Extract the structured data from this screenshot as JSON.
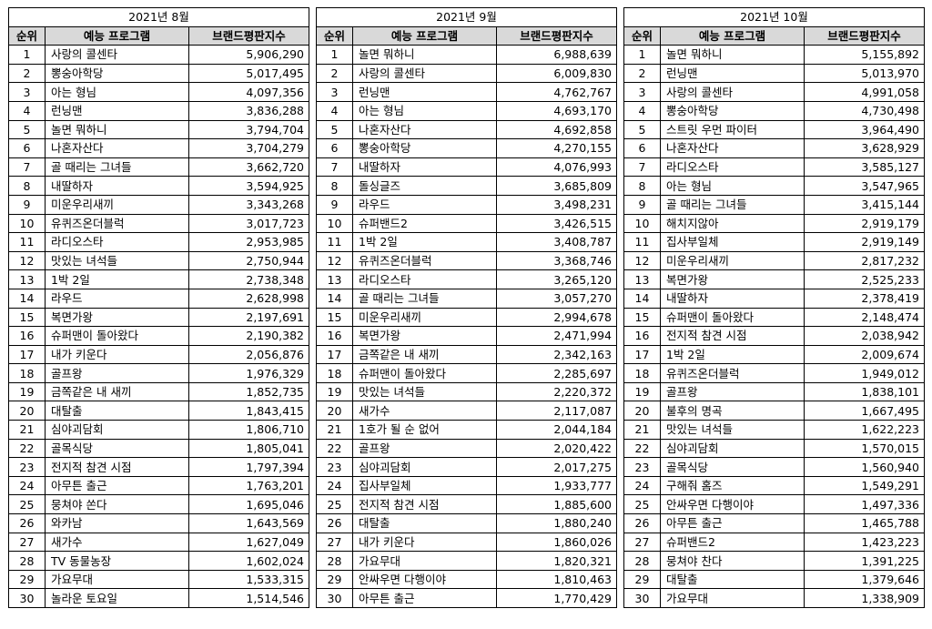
{
  "tables": [
    {
      "month": "2021년 8월",
      "headers": {
        "rank": "순위",
        "program": "예능 프로그램",
        "index": "브랜드평판지수"
      },
      "rows": [
        {
          "rank": "1",
          "name": "사랑의 콜센타",
          "score": "5,906,290"
        },
        {
          "rank": "2",
          "name": "뽕숭아학당",
          "score": "5,017,495"
        },
        {
          "rank": "3",
          "name": "아는 형님",
          "score": "4,097,356"
        },
        {
          "rank": "4",
          "name": "런닝맨",
          "score": "3,836,288"
        },
        {
          "rank": "5",
          "name": "놀면 뭐하니",
          "score": "3,794,704"
        },
        {
          "rank": "6",
          "name": "나혼자산다",
          "score": "3,704,279"
        },
        {
          "rank": "7",
          "name": "골 때리는 그녀들",
          "score": "3,662,720"
        },
        {
          "rank": "8",
          "name": "내딸하자",
          "score": "3,594,925"
        },
        {
          "rank": "9",
          "name": "미운우리새끼",
          "score": "3,343,268"
        },
        {
          "rank": "10",
          "name": "유퀴즈온더블럭",
          "score": "3,017,723"
        },
        {
          "rank": "11",
          "name": "라디오스타",
          "score": "2,953,985"
        },
        {
          "rank": "12",
          "name": "맛있는 녀석들",
          "score": "2,750,944"
        },
        {
          "rank": "13",
          "name": "1박 2일",
          "score": "2,738,348"
        },
        {
          "rank": "14",
          "name": "라우드",
          "score": "2,628,998"
        },
        {
          "rank": "15",
          "name": "복면가왕",
          "score": "2,197,691"
        },
        {
          "rank": "16",
          "name": "슈퍼맨이 돌아왔다",
          "score": "2,190,382"
        },
        {
          "rank": "17",
          "name": "내가 키운다",
          "score": "2,056,876"
        },
        {
          "rank": "18",
          "name": "골프왕",
          "score": "1,976,329"
        },
        {
          "rank": "19",
          "name": "금쪽같은 내 새끼",
          "score": "1,852,735"
        },
        {
          "rank": "20",
          "name": "대탈출",
          "score": "1,843,415"
        },
        {
          "rank": "21",
          "name": "심야괴담회",
          "score": "1,806,710"
        },
        {
          "rank": "22",
          "name": "골목식당",
          "score": "1,805,041"
        },
        {
          "rank": "23",
          "name": "전지적 참견 시점",
          "score": "1,797,394"
        },
        {
          "rank": "24",
          "name": "아무튼 출근",
          "score": "1,763,201"
        },
        {
          "rank": "25",
          "name": "뭉쳐야 쏜다",
          "score": "1,695,046"
        },
        {
          "rank": "26",
          "name": "와카남",
          "score": "1,643,569"
        },
        {
          "rank": "27",
          "name": "새가수",
          "score": "1,627,049"
        },
        {
          "rank": "28",
          "name": "TV 동물농장",
          "score": "1,602,024"
        },
        {
          "rank": "29",
          "name": "가요무대",
          "score": "1,533,315"
        },
        {
          "rank": "30",
          "name": "놀라운 토요일",
          "score": "1,514,546"
        }
      ]
    },
    {
      "month": "2021년 9월",
      "headers": {
        "rank": "순위",
        "program": "예능 프로그램",
        "index": "브랜드평판지수"
      },
      "rows": [
        {
          "rank": "1",
          "name": "놀면 뭐하니",
          "score": "6,988,639"
        },
        {
          "rank": "2",
          "name": "사랑의 콜센타",
          "score": "6,009,830"
        },
        {
          "rank": "3",
          "name": "런닝맨",
          "score": "4,762,767"
        },
        {
          "rank": "4",
          "name": "아는 형님",
          "score": "4,693,170"
        },
        {
          "rank": "5",
          "name": "나혼자산다",
          "score": "4,692,858"
        },
        {
          "rank": "6",
          "name": "뽕숭아학당",
          "score": "4,270,155"
        },
        {
          "rank": "7",
          "name": "내딸하자",
          "score": "4,076,993"
        },
        {
          "rank": "8",
          "name": "돌싱글즈",
          "score": "3,685,809"
        },
        {
          "rank": "9",
          "name": "라우드",
          "score": "3,498,231"
        },
        {
          "rank": "10",
          "name": "슈퍼밴드2",
          "score": "3,426,515"
        },
        {
          "rank": "11",
          "name": "1박 2일",
          "score": "3,408,787"
        },
        {
          "rank": "12",
          "name": "유퀴즈온더블럭",
          "score": "3,368,746"
        },
        {
          "rank": "13",
          "name": "라디오스타",
          "score": "3,265,120"
        },
        {
          "rank": "14",
          "name": "골 때리는 그녀들",
          "score": "3,057,270"
        },
        {
          "rank": "15",
          "name": "미운우리새끼",
          "score": "2,994,678"
        },
        {
          "rank": "16",
          "name": "복면가왕",
          "score": "2,471,994"
        },
        {
          "rank": "17",
          "name": "금쪽같은 내 새끼",
          "score": "2,342,163"
        },
        {
          "rank": "18",
          "name": "슈퍼맨이 돌아왔다",
          "score": "2,285,697"
        },
        {
          "rank": "19",
          "name": "맛있는 녀석들",
          "score": "2,220,372"
        },
        {
          "rank": "20",
          "name": "새가수",
          "score": "2,117,087"
        },
        {
          "rank": "21",
          "name": "1호가 될 순 없어",
          "score": "2,044,184"
        },
        {
          "rank": "22",
          "name": "골프왕",
          "score": "2,020,422"
        },
        {
          "rank": "23",
          "name": "심야괴담회",
          "score": "2,017,275"
        },
        {
          "rank": "24",
          "name": "집사부일체",
          "score": "1,933,777"
        },
        {
          "rank": "25",
          "name": "전지적 참견 시점",
          "score": "1,885,600"
        },
        {
          "rank": "26",
          "name": "대탈출",
          "score": "1,880,240"
        },
        {
          "rank": "27",
          "name": "내가 키운다",
          "score": "1,860,026"
        },
        {
          "rank": "28",
          "name": "가요무대",
          "score": "1,820,321"
        },
        {
          "rank": "29",
          "name": "안싸우면 다행이야",
          "score": "1,810,463"
        },
        {
          "rank": "30",
          "name": "아무튼 출근",
          "score": "1,770,429"
        }
      ]
    },
    {
      "month": "2021년 10월",
      "headers": {
        "rank": "순위",
        "program": "예능 프로그램",
        "index": "브랜드평판지수"
      },
      "rows": [
        {
          "rank": "1",
          "name": "놀면 뭐하니",
          "score": "5,155,892"
        },
        {
          "rank": "2",
          "name": "런닝맨",
          "score": "5,013,970"
        },
        {
          "rank": "3",
          "name": "사랑의 콜센타",
          "score": "4,991,058"
        },
        {
          "rank": "4",
          "name": "뽕숭아학당",
          "score": "4,730,498"
        },
        {
          "rank": "5",
          "name": "스트릿 우먼 파이터",
          "score": "3,964,490"
        },
        {
          "rank": "6",
          "name": "나혼자산다",
          "score": "3,628,929"
        },
        {
          "rank": "7",
          "name": "라디오스타",
          "score": "3,585,127"
        },
        {
          "rank": "8",
          "name": "아는 형님",
          "score": "3,547,965"
        },
        {
          "rank": "9",
          "name": "골 때리는 그녀들",
          "score": "3,415,144"
        },
        {
          "rank": "10",
          "name": "해치지않아",
          "score": "2,919,179"
        },
        {
          "rank": "11",
          "name": "집사부일체",
          "score": "2,919,149"
        },
        {
          "rank": "12",
          "name": "미운우리새끼",
          "score": "2,817,232"
        },
        {
          "rank": "13",
          "name": "복면가왕",
          "score": "2,525,233"
        },
        {
          "rank": "14",
          "name": "내딸하자",
          "score": "2,378,419"
        },
        {
          "rank": "15",
          "name": "슈퍼맨이 돌아왔다",
          "score": "2,148,474"
        },
        {
          "rank": "16",
          "name": "전지적 참견 시점",
          "score": "2,038,942"
        },
        {
          "rank": "17",
          "name": "1박 2일",
          "score": "2,009,674"
        },
        {
          "rank": "18",
          "name": "유퀴즈온더블럭",
          "score": "1,949,012"
        },
        {
          "rank": "19",
          "name": "골프왕",
          "score": "1,838,101"
        },
        {
          "rank": "20",
          "name": "불후의 명곡",
          "score": "1,667,495"
        },
        {
          "rank": "21",
          "name": "맛있는 녀석들",
          "score": "1,622,223"
        },
        {
          "rank": "22",
          "name": "심야괴담회",
          "score": "1,570,015"
        },
        {
          "rank": "23",
          "name": "골목식당",
          "score": "1,560,940"
        },
        {
          "rank": "24",
          "name": "구해줘 홈즈",
          "score": "1,549,291"
        },
        {
          "rank": "25",
          "name": "안싸우면 다행이야",
          "score": "1,497,336"
        },
        {
          "rank": "26",
          "name": "아무튼 출근",
          "score": "1,465,788"
        },
        {
          "rank": "27",
          "name": "슈퍼밴드2",
          "score": "1,423,223"
        },
        {
          "rank": "28",
          "name": "뭉쳐야 찬다",
          "score": "1,391,225"
        },
        {
          "rank": "29",
          "name": "대탈출",
          "score": "1,379,646"
        },
        {
          "rank": "30",
          "name": "가요무대",
          "score": "1,338,909"
        }
      ]
    }
  ]
}
